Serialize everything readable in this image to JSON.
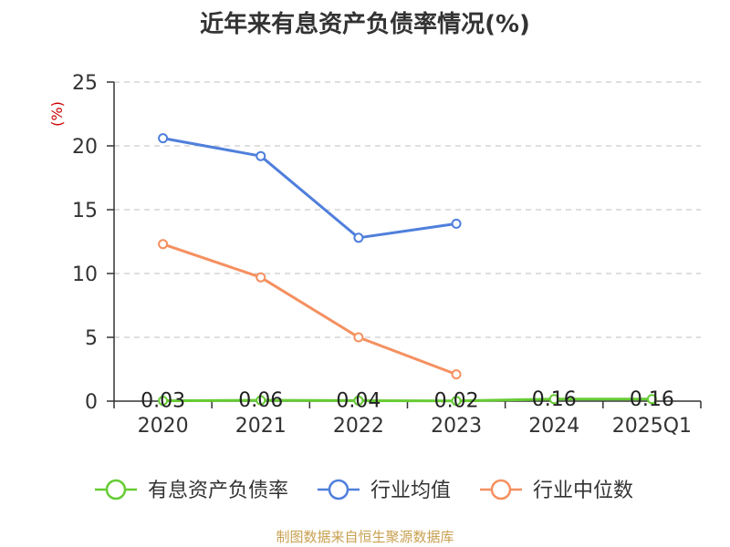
{
  "title": "近年来有息资产负债率情况(%)",
  "source": "制图数据来自恒生聚源数据库",
  "colors": {
    "axis": "#333333",
    "grid": "#cccccc",
    "unit": "#cc0000",
    "series": [
      "#66cc33",
      "#4f7fdc",
      "#f59060"
    ]
  },
  "chart_data": {
    "type": "line",
    "title": "近年来有息资产负债率情况(%)",
    "ylabel": "(%)",
    "xlabel": "",
    "categories": [
      "2020",
      "2021",
      "2022",
      "2023",
      "2024",
      "2025Q1"
    ],
    "ylim": [
      0,
      25
    ],
    "yticks": [
      0,
      5,
      10,
      15,
      20,
      25
    ],
    "grid": true,
    "legend": "bottom",
    "series": [
      {
        "name": "有息资产负债率",
        "values": [
          0.03,
          0.06,
          0.04,
          0.02,
          0.16,
          0.16
        ],
        "labels": [
          "0.03",
          "0.06",
          "0.04",
          "0.02",
          "0.16",
          "0.16"
        ]
      },
      {
        "name": "行业均值",
        "values": [
          20.6,
          19.2,
          12.8,
          13.9,
          null,
          null
        ]
      },
      {
        "name": "行业中位数",
        "values": [
          12.3,
          9.7,
          5.0,
          2.1,
          null,
          null
        ]
      }
    ]
  }
}
